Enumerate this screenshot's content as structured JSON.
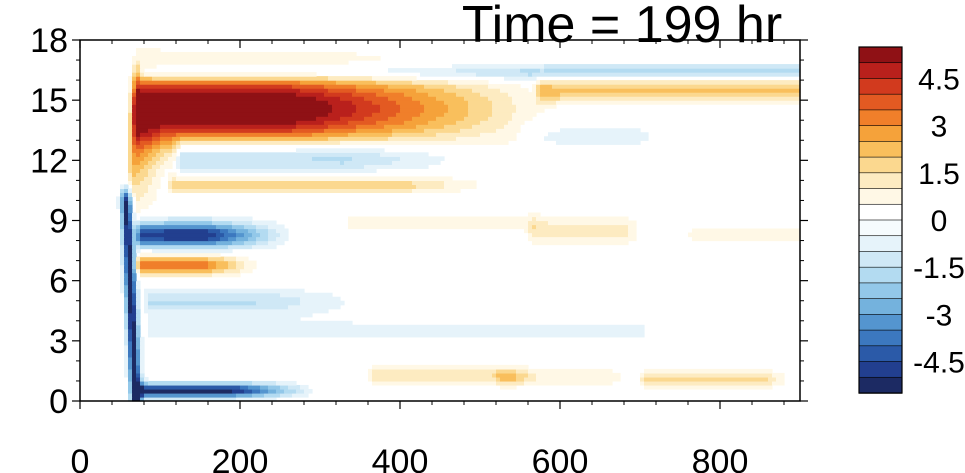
{
  "chart_data": {
    "type": "heatmap",
    "title": "Time = 199 hr",
    "xlabel": "",
    "ylabel": "",
    "xlim": [
      0,
      900
    ],
    "ylim": [
      0,
      18
    ],
    "x_ticks": [
      0,
      200,
      400,
      600,
      800
    ],
    "y_ticks": [
      0,
      3,
      6,
      9,
      12,
      15,
      18
    ],
    "colorbar": {
      "levels": [
        -5.5,
        -5,
        -4.5,
        -4,
        -3.5,
        -3,
        -2.5,
        -2,
        -1.5,
        -1,
        -0.5,
        0,
        0.5,
        1,
        1.5,
        2,
        2.5,
        3,
        3.5,
        4,
        4.5,
        5,
        5.5
      ],
      "colors": [
        "#1c2a63",
        "#223f8f",
        "#2b5aa8",
        "#3c78bf",
        "#5495cf",
        "#74b2dd",
        "#93c8e9",
        "#b3dbf1",
        "#cfe8f6",
        "#e6f3fa",
        "#f6fbfd",
        "#ffffff",
        "#fff8e6",
        "#fdebc1",
        "#fbd88f",
        "#f9bf5c",
        "#f5a23a",
        "#f07f2a",
        "#e35a22",
        "#d23a1e",
        "#b9201c",
        "#8f1115"
      ],
      "tick_labels": [
        "4.5",
        "3",
        "1.5",
        "0",
        "-1.5",
        "-3",
        "-4.5"
      ],
      "tick_values": [
        4.5,
        3,
        1.5,
        0,
        -1.5,
        -3,
        -4.5
      ]
    },
    "features": [
      {
        "x0": 65,
        "x1": 600,
        "y": 14.6,
        "amp": 6.0,
        "sy": 1.3,
        "fade": 340
      },
      {
        "x0": 60,
        "x1": 110,
        "y": 12.0,
        "amp": 6.0,
        "sy": 1.8,
        "fade": 120
      },
      {
        "x0": 570,
        "x1": 900,
        "y": 15.5,
        "amp": 2.2,
        "sy": 0.45,
        "fade": 0
      },
      {
        "x0": 75,
        "x1": 900,
        "y": 16.4,
        "amp": -1.9,
        "sy": 0.3,
        "fade": 0
      },
      {
        "x0": 120,
        "x1": 530,
        "y": 12.2,
        "amp": -2.4,
        "sy": 0.55,
        "fade": 200
      },
      {
        "x0": 550,
        "x1": 700,
        "y": 13.2,
        "amp": -0.7,
        "sy": 0.4,
        "fade": 0
      },
      {
        "x0": 110,
        "x1": 530,
        "y": 10.8,
        "amp": 1.7,
        "sy": 0.3,
        "fade": 120
      },
      {
        "x0": 70,
        "x1": 270,
        "y": 8.3,
        "amp": -5.0,
        "sy": 0.45,
        "fade": 110
      },
      {
        "x0": 70,
        "x1": 230,
        "y": 6.8,
        "amp": 3.6,
        "sy": 0.35,
        "fade": 80
      },
      {
        "x0": 80,
        "x1": 380,
        "y": 5.0,
        "amp": -1.5,
        "sy": 0.45,
        "fade": 160
      },
      {
        "x0": 330,
        "x1": 560,
        "y": 8.9,
        "amp": 0.7,
        "sy": 0.35,
        "fade": 0
      },
      {
        "x0": 560,
        "x1": 680,
        "y": 8.5,
        "amp": 1.2,
        "sy": 0.5,
        "fade": 0
      },
      {
        "x0": 760,
        "x1": 900,
        "y": 8.3,
        "amp": 0.8,
        "sy": 0.4,
        "fade": 0
      },
      {
        "x0": 80,
        "x1": 700,
        "y": 3.5,
        "amp": -0.6,
        "sy": 0.6,
        "fade": 0
      },
      {
        "x0": 68,
        "x1": 300,
        "y": 0.55,
        "amp": -5.2,
        "sy": 0.25,
        "fade": 110
      },
      {
        "x0": 360,
        "x1": 540,
        "y": 1.3,
        "amp": 1.4,
        "sy": 0.35,
        "fade": 0
      },
      {
        "x0": 520,
        "x1": 660,
        "y": 1.2,
        "amp": 1.0,
        "sy": 0.3,
        "fade": 0
      },
      {
        "x0": 700,
        "x1": 860,
        "y": 1.1,
        "amp": 1.6,
        "sy": 0.3,
        "fade": 0
      }
    ],
    "front": {
      "y_bottom": 0.0,
      "y_top": 10.0,
      "x_bottom": 70,
      "x_top": 58,
      "amp": -5.5,
      "width": 5
    }
  }
}
